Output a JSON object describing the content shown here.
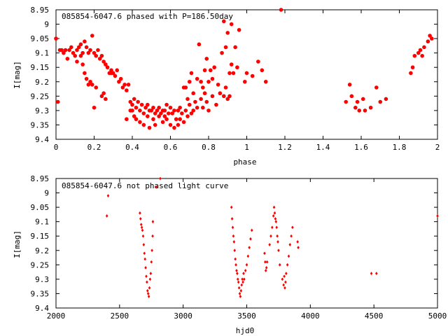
{
  "chart_data": [
    {
      "type": "scatter",
      "title": "085854-6047.6 phased with P=186.50day",
      "xlabel": "phase",
      "ylabel": "I[mag]",
      "xlim": [
        0,
        2
      ],
      "ylim": [
        8.95,
        9.4
      ],
      "y_inverted": true,
      "xticks": [
        "0",
        "0.2",
        "0.4",
        "0.6",
        "0.8",
        "1",
        "1.2",
        "1.4",
        "1.6",
        "1.8",
        "2"
      ],
      "yticks": [
        "8.95",
        "9",
        "9.05",
        "9.1",
        "9.15",
        "9.2",
        "9.25",
        "9.3",
        "9.35",
        "9.4"
      ],
      "grid": false,
      "marker_color": "#ff0000",
      "marker": "filled-circle",
      "points": [
        [
          0.0,
          9.05
        ],
        [
          0.01,
          9.27
        ],
        [
          0.02,
          9.09
        ],
        [
          0.03,
          9.09
        ],
        [
          0.04,
          9.1
        ],
        [
          0.05,
          9.09
        ],
        [
          0.06,
          9.12
        ],
        [
          0.07,
          9.09
        ],
        [
          0.08,
          9.08
        ],
        [
          0.09,
          9.1
        ],
        [
          0.1,
          9.11
        ],
        [
          0.11,
          9.13
        ],
        [
          0.11,
          9.09
        ],
        [
          0.12,
          9.08
        ],
        [
          0.13,
          9.07
        ],
        [
          0.13,
          9.11
        ],
        [
          0.14,
          9.1
        ],
        [
          0.14,
          9.14
        ],
        [
          0.15,
          9.06
        ],
        [
          0.15,
          9.17
        ],
        [
          0.16,
          9.08
        ],
        [
          0.16,
          9.19
        ],
        [
          0.17,
          9.1
        ],
        [
          0.17,
          9.21
        ],
        [
          0.18,
          9.09
        ],
        [
          0.18,
          9.2
        ],
        [
          0.19,
          9.04
        ],
        [
          0.19,
          9.21
        ],
        [
          0.2,
          9.1
        ],
        [
          0.2,
          9.29
        ],
        [
          0.21,
          9.11
        ],
        [
          0.21,
          9.22
        ],
        [
          0.22,
          9.09
        ],
        [
          0.23,
          9.12
        ],
        [
          0.24,
          9.11
        ],
        [
          0.24,
          9.25
        ],
        [
          0.25,
          9.13
        ],
        [
          0.25,
          9.24
        ],
        [
          0.26,
          9.14
        ],
        [
          0.26,
          9.26
        ],
        [
          0.27,
          9.15
        ],
        [
          0.28,
          9.17
        ],
        [
          0.29,
          9.16
        ],
        [
          0.29,
          9.17
        ],
        [
          0.3,
          9.17
        ],
        [
          0.31,
          9.18
        ],
        [
          0.32,
          9.16
        ],
        [
          0.33,
          9.2
        ],
        [
          0.34,
          9.19
        ],
        [
          0.35,
          9.22
        ],
        [
          0.36,
          9.21
        ],
        [
          0.37,
          9.23
        ],
        [
          0.37,
          9.33
        ],
        [
          0.38,
          9.21
        ],
        [
          0.39,
          9.27
        ],
        [
          0.39,
          9.3
        ],
        [
          0.4,
          9.28
        ],
        [
          0.4,
          9.3
        ],
        [
          0.41,
          9.26
        ],
        [
          0.41,
          9.32
        ],
        [
          0.42,
          9.29
        ],
        [
          0.42,
          9.33
        ],
        [
          0.43,
          9.27
        ],
        [
          0.44,
          9.3
        ],
        [
          0.44,
          9.34
        ],
        [
          0.45,
          9.28
        ],
        [
          0.46,
          9.31
        ],
        [
          0.46,
          9.35
        ],
        [
          0.47,
          9.29
        ],
        [
          0.48,
          9.32
        ],
        [
          0.48,
          9.28
        ],
        [
          0.49,
          9.3
        ],
        [
          0.49,
          9.36
        ],
        [
          0.5,
          9.3
        ],
        [
          0.51,
          9.29
        ],
        [
          0.51,
          9.33
        ],
        [
          0.52,
          9.31
        ],
        [
          0.52,
          9.35
        ],
        [
          0.53,
          9.3
        ],
        [
          0.54,
          9.32
        ],
        [
          0.54,
          9.29
        ],
        [
          0.55,
          9.31
        ],
        [
          0.56,
          9.3
        ],
        [
          0.56,
          9.34
        ],
        [
          0.57,
          9.32
        ],
        [
          0.57,
          9.3
        ],
        [
          0.58,
          9.28
        ],
        [
          0.58,
          9.33
        ],
        [
          0.59,
          9.31
        ],
        [
          0.6,
          9.29
        ],
        [
          0.6,
          9.35
        ],
        [
          0.61,
          9.31
        ],
        [
          0.62,
          9.3
        ],
        [
          0.62,
          9.36
        ],
        [
          0.63,
          9.33
        ],
        [
          0.64,
          9.3
        ],
        [
          0.64,
          9.35
        ],
        [
          0.65,
          9.29
        ],
        [
          0.65,
          9.33
        ],
        [
          0.66,
          9.31
        ],
        [
          0.67,
          9.22
        ],
        [
          0.67,
          9.34
        ],
        [
          0.68,
          9.3
        ],
        [
          0.68,
          9.22
        ],
        [
          0.69,
          9.26
        ],
        [
          0.69,
          9.32
        ],
        [
          0.7,
          9.2
        ],
        [
          0.7,
          9.28
        ],
        [
          0.71,
          9.31
        ],
        [
          0.71,
          9.17
        ],
        [
          0.72,
          9.24
        ],
        [
          0.72,
          9.3
        ],
        [
          0.73,
          9.27
        ],
        [
          0.74,
          9.29
        ],
        [
          0.74,
          9.19
        ],
        [
          0.75,
          9.07
        ],
        [
          0.76,
          9.26
        ],
        [
          0.76,
          9.2
        ],
        [
          0.77,
          9.22
        ],
        [
          0.77,
          9.29
        ],
        [
          0.78,
          9.16
        ],
        [
          0.78,
          9.24
        ],
        [
          0.79,
          9.12
        ],
        [
          0.79,
          9.27
        ],
        [
          0.8,
          9.2
        ],
        [
          0.8,
          9.3
        ],
        [
          0.81,
          9.16
        ],
        [
          0.82,
          9.25
        ],
        [
          0.82,
          9.19
        ],
        [
          0.83,
          9.15
        ],
        [
          0.84,
          9.28
        ],
        [
          0.85,
          9.21
        ],
        [
          0.86,
          9.24
        ],
        [
          0.87,
          9.1
        ],
        [
          0.88,
          9.25
        ],
        [
          0.88,
          8.99
        ],
        [
          0.89,
          9.22
        ],
        [
          0.89,
          9.08
        ],
        [
          0.9,
          9.26
        ],
        [
          0.9,
          9.03
        ],
        [
          0.91,
          9.17
        ],
        [
          0.91,
          9.25
        ],
        [
          0.92,
          9.0
        ],
        [
          0.92,
          9.14
        ],
        [
          0.93,
          9.17
        ],
        [
          0.94,
          9.08
        ],
        [
          0.95,
          9.15
        ],
        [
          0.96,
          9.02
        ],
        [
          0.99,
          9.2
        ],
        [
          1.0,
          9.17
        ],
        [
          1.03,
          9.18
        ],
        [
          1.06,
          9.13
        ],
        [
          1.08,
          9.16
        ],
        [
          1.1,
          9.2
        ],
        [
          1.18,
          8.95
        ],
        [
          1.52,
          9.27
        ],
        [
          1.54,
          9.21
        ],
        [
          1.55,
          9.25
        ],
        [
          1.57,
          9.29
        ],
        [
          1.58,
          9.27
        ],
        [
          1.59,
          9.3
        ],
        [
          1.61,
          9.26
        ],
        [
          1.62,
          9.3
        ],
        [
          1.65,
          9.29
        ],
        [
          1.68,
          9.22
        ],
        [
          1.7,
          9.27
        ],
        [
          1.73,
          9.26
        ],
        [
          1.86,
          9.17
        ],
        [
          1.87,
          9.15
        ],
        [
          1.88,
          9.11
        ],
        [
          1.9,
          9.1
        ],
        [
          1.91,
          9.09
        ],
        [
          1.92,
          9.11
        ],
        [
          1.93,
          9.08
        ],
        [
          1.95,
          9.06
        ],
        [
          1.96,
          9.04
        ],
        [
          1.97,
          9.05
        ]
      ]
    },
    {
      "type": "scatter",
      "title": "085854-6047.6 not phased light curve",
      "xlabel": "hjd0",
      "ylabel": "I[mag]",
      "xlim": [
        2000,
        5000
      ],
      "ylim": [
        8.95,
        9.4
      ],
      "y_inverted": true,
      "xticks": [
        "2000",
        "2500",
        "3000",
        "3500",
        "4000",
        "4500",
        "5000"
      ],
      "yticks": [
        "8.95",
        "9",
        "9.05",
        "9.1",
        "9.15",
        "9.2",
        "9.25",
        "9.3",
        "9.35",
        "9.4"
      ],
      "grid": false,
      "marker_color": "#ff0000",
      "marker": "filled-diamond",
      "points": [
        [
          2400,
          9.08
        ],
        [
          2410,
          9.01
        ],
        [
          2660,
          9.07
        ],
        [
          2665,
          9.09
        ],
        [
          2670,
          9.11
        ],
        [
          2675,
          9.12
        ],
        [
          2680,
          9.13
        ],
        [
          2685,
          9.15
        ],
        [
          2690,
          9.18
        ],
        [
          2695,
          9.21
        ],
        [
          2700,
          9.23
        ],
        [
          2705,
          9.26
        ],
        [
          2710,
          9.29
        ],
        [
          2715,
          9.31
        ],
        [
          2720,
          9.34
        ],
        [
          2725,
          9.35
        ],
        [
          2730,
          9.36
        ],
        [
          2735,
          9.33
        ],
        [
          2740,
          9.3
        ],
        [
          2745,
          9.28
        ],
        [
          2750,
          9.24
        ],
        [
          2755,
          9.2
        ],
        [
          2760,
          9.15
        ],
        [
          2762,
          9.1
        ],
        [
          2790,
          8.98
        ],
        [
          2820,
          8.95
        ],
        [
          3380,
          9.05
        ],
        [
          3385,
          9.09
        ],
        [
          3390,
          9.12
        ],
        [
          3395,
          9.15
        ],
        [
          3400,
          9.17
        ],
        [
          3405,
          9.2
        ],
        [
          3410,
          9.23
        ],
        [
          3415,
          9.25
        ],
        [
          3420,
          9.27
        ],
        [
          3425,
          9.28
        ],
        [
          3430,
          9.3
        ],
        [
          3435,
          9.31
        ],
        [
          3440,
          9.33
        ],
        [
          3445,
          9.35
        ],
        [
          3450,
          9.36
        ],
        [
          3455,
          9.34
        ],
        [
          3460,
          9.32
        ],
        [
          3465,
          9.3
        ],
        [
          3470,
          9.31
        ],
        [
          3475,
          9.28
        ],
        [
          3480,
          9.3
        ],
        [
          3490,
          9.27
        ],
        [
          3500,
          9.25
        ],
        [
          3510,
          9.22
        ],
        [
          3520,
          9.19
        ],
        [
          3530,
          9.16
        ],
        [
          3540,
          9.13
        ],
        [
          3640,
          9.21
        ],
        [
          3645,
          9.24
        ],
        [
          3650,
          9.27
        ],
        [
          3655,
          9.26
        ],
        [
          3660,
          9.24
        ],
        [
          3680,
          9.18
        ],
        [
          3690,
          9.15
        ],
        [
          3700,
          9.12
        ],
        [
          3710,
          9.08
        ],
        [
          3715,
          9.05
        ],
        [
          3720,
          9.07
        ],
        [
          3725,
          9.09
        ],
        [
          3730,
          9.1
        ],
        [
          3735,
          9.12
        ],
        [
          3740,
          9.15
        ],
        [
          3745,
          9.17
        ],
        [
          3750,
          9.2
        ],
        [
          3760,
          9.25
        ],
        [
          3780,
          9.3
        ],
        [
          3790,
          9.32
        ],
        [
          3795,
          9.29
        ],
        [
          3800,
          9.33
        ],
        [
          3805,
          9.31
        ],
        [
          3810,
          9.28
        ],
        [
          3820,
          9.25
        ],
        [
          3830,
          9.22
        ],
        [
          3840,
          9.18
        ],
        [
          3850,
          9.15
        ],
        [
          3860,
          9.12
        ],
        [
          3900,
          9.17
        ],
        [
          3905,
          9.19
        ],
        [
          4480,
          9.28
        ],
        [
          4520,
          9.28
        ],
        [
          5000,
          9.08
        ]
      ]
    }
  ]
}
